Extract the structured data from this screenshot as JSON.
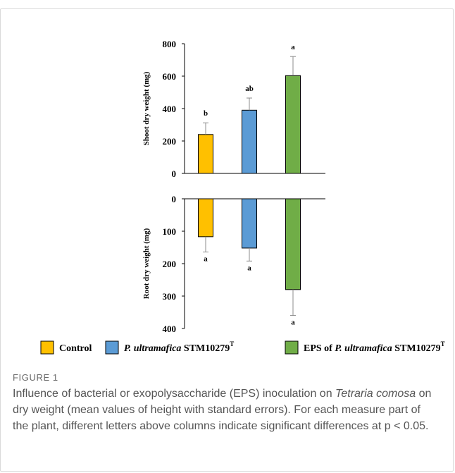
{
  "figure": {
    "label": "FIGURE 1",
    "caption_pre": "Influence of bacterial or exopolysaccharide (EPS) inoculation on ",
    "caption_species": "Tetraria comosa",
    "caption_post": " on dry weight (mean values of height with standard errors). For each measure part of the plant, different letters above columns indicate significant differences at p < 0.05."
  },
  "chart_data": {
    "type": "bar",
    "categories": [
      "Control",
      "P. ultramafica STM10279T",
      "EPS of P. ultramafica STM10279T"
    ],
    "legend": [
      {
        "text_italic": "",
        "text_before": "Control",
        "text_after": "",
        "sup": "",
        "color": "#ffc000"
      },
      {
        "text_italic": "P. ultramafica",
        "text_before": "",
        "text_after": " STM10279",
        "sup": "T",
        "color": "#5b9bd5"
      },
      {
        "text_italic": "P. ultramafica",
        "text_before": "EPS of ",
        "text_after": " STM10279",
        "sup": "T",
        "color": "#70ad47"
      }
    ],
    "panels": [
      {
        "ylabel": "Shoot dry weight (mg)",
        "ylim": [
          0,
          800
        ],
        "ticks": [
          0,
          200,
          400,
          600,
          800
        ],
        "direction": "up",
        "values": [
          240,
          390,
          603
        ],
        "errors": [
          72,
          75,
          118
        ],
        "letters": [
          "b",
          "ab",
          "a"
        ]
      },
      {
        "ylabel": "Root dry weight (mg)",
        "ylim": [
          0,
          400
        ],
        "ticks": [
          0,
          100,
          200,
          300,
          400
        ],
        "direction": "down",
        "values": [
          117,
          152,
          280
        ],
        "errors": [
          47,
          40,
          80
        ],
        "letters": [
          "a",
          "a",
          "a"
        ]
      }
    ],
    "colors": [
      "#ffc000",
      "#5b9bd5",
      "#70ad47"
    ]
  }
}
